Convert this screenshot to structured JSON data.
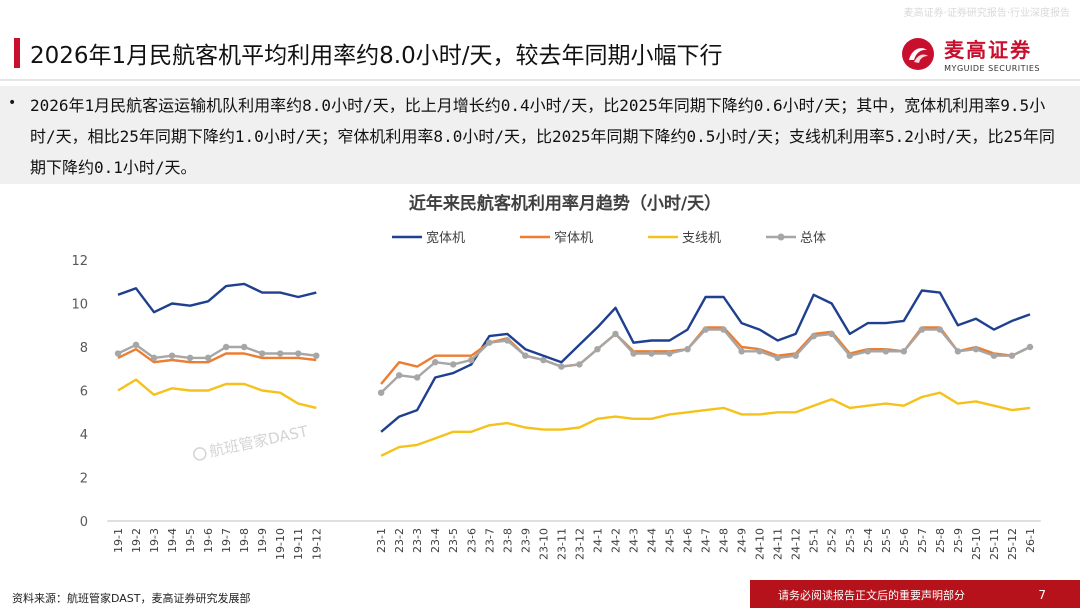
{
  "header": {
    "title": "2026年1月民航客机平均利用率约8.0小时/天，较去年同期小幅下行",
    "watermark": "麦高证券·证券研究报告·行业深度报告",
    "logo_cn": "麦高证券",
    "logo_en": "MYGUIDE SECURITIES",
    "brand_color": "#c8102e"
  },
  "summary": {
    "bullet": "•",
    "text": "2026年1月民航客运运输机队利用率约8.0小时/天，比上月增长约0.4小时/天，比2025年同期下降约0.6小时/天；其中，宽体机利用率9.5小时/天，相比25年同期下降约1.0小时/天；窄体机利用率8.0小时/天，比2025年同期下降约0.5小时/天；支线机利用率5.2小时/天，比25年同期下降约0.1小时/天。"
  },
  "chart_data": {
    "type": "line",
    "title": "近年来民航客机利用率月趋势（小时/天）",
    "watermark": "航班管家DAST",
    "ylim": [
      0,
      12
    ],
    "yticks": [
      0,
      2,
      4,
      6,
      8,
      10,
      12
    ],
    "grid": false,
    "legend_position": "top-center",
    "categories": [
      "19-1",
      "19-2",
      "19-3",
      "19-4",
      "19-5",
      "19-6",
      "19-7",
      "19-8",
      "19-9",
      "19-10",
      "19-11",
      "19-12",
      "23-1",
      "23-2",
      "23-3",
      "23-4",
      "23-5",
      "23-6",
      "23-7",
      "23-8",
      "23-9",
      "23-10",
      "23-11",
      "23-12",
      "24-1",
      "24-2",
      "24-3",
      "24-4",
      "24-5",
      "24-6",
      "24-7",
      "24-8",
      "24-9",
      "24-10",
      "24-11",
      "24-12",
      "25-1",
      "25-2",
      "25-3",
      "25-4",
      "25-5",
      "25-6",
      "25-7",
      "25-8",
      "25-9",
      "25-10",
      "25-11",
      "25-12",
      "26-1"
    ],
    "segments": [
      [
        0,
        11
      ],
      [
        12,
        48
      ]
    ],
    "series": [
      {
        "name": "宽体机",
        "color": "#1f3f8f",
        "marker": false,
        "values": [
          10.4,
          10.7,
          9.6,
          10.0,
          9.9,
          10.1,
          10.8,
          10.9,
          10.5,
          10.5,
          10.3,
          10.5,
          4.1,
          4.8,
          5.1,
          6.6,
          6.8,
          7.2,
          8.5,
          8.6,
          7.9,
          7.6,
          7.3,
          8.1,
          8.9,
          9.8,
          8.2,
          8.3,
          8.3,
          8.8,
          10.3,
          10.3,
          9.1,
          8.8,
          8.3,
          8.6,
          10.4,
          10.0,
          8.6,
          9.1,
          9.1,
          9.2,
          10.6,
          10.5,
          9.0,
          9.3,
          8.8,
          9.2,
          9.5
        ]
      },
      {
        "name": "窄体机",
        "color": "#ed7d31",
        "marker": false,
        "values": [
          7.5,
          7.9,
          7.3,
          7.4,
          7.3,
          7.3,
          7.7,
          7.7,
          7.5,
          7.5,
          7.5,
          7.4,
          6.3,
          7.3,
          7.1,
          7.6,
          7.6,
          7.6,
          8.2,
          8.4,
          7.6,
          7.4,
          7.1,
          7.2,
          7.9,
          8.6,
          7.8,
          7.8,
          7.8,
          7.9,
          8.9,
          8.9,
          8.0,
          7.9,
          7.6,
          7.7,
          8.6,
          8.7,
          7.7,
          7.9,
          7.9,
          7.8,
          8.9,
          8.9,
          7.8,
          8.0,
          7.7,
          7.6,
          8.0
        ]
      },
      {
        "name": "支线机",
        "color": "#f5c21b",
        "marker": false,
        "values": [
          6.0,
          6.5,
          5.8,
          6.1,
          6.0,
          6.0,
          6.3,
          6.3,
          6.0,
          5.9,
          5.4,
          5.2,
          3.0,
          3.4,
          3.5,
          3.8,
          4.1,
          4.1,
          4.4,
          4.5,
          4.3,
          4.2,
          4.2,
          4.3,
          4.7,
          4.8,
          4.7,
          4.7,
          4.9,
          5.0,
          5.1,
          5.2,
          4.9,
          4.9,
          5.0,
          5.0,
          5.3,
          5.6,
          5.2,
          5.3,
          5.4,
          5.3,
          5.7,
          5.9,
          5.4,
          5.5,
          5.3,
          5.1,
          5.2
        ]
      },
      {
        "name": "总体",
        "color": "#a6a6a6",
        "marker": true,
        "values": [
          7.7,
          8.1,
          7.5,
          7.6,
          7.5,
          7.5,
          8.0,
          8.0,
          7.7,
          7.7,
          7.7,
          7.6,
          5.9,
          6.7,
          6.6,
          7.3,
          7.2,
          7.4,
          8.2,
          8.3,
          7.6,
          7.4,
          7.1,
          7.2,
          7.9,
          8.6,
          7.7,
          7.7,
          7.7,
          7.9,
          8.8,
          8.8,
          7.8,
          7.8,
          7.5,
          7.6,
          8.5,
          8.6,
          7.6,
          7.8,
          7.8,
          7.8,
          8.8,
          8.8,
          7.8,
          7.9,
          7.6,
          7.6,
          8.0
        ]
      }
    ]
  },
  "footer": {
    "source": "资料来源：航班管家DAST，麦高证券研究发展部",
    "disclaimer": "请务必阅读报告正文后的重要声明部分",
    "page_number": "7",
    "disclaimer_color": "#b5121b"
  }
}
